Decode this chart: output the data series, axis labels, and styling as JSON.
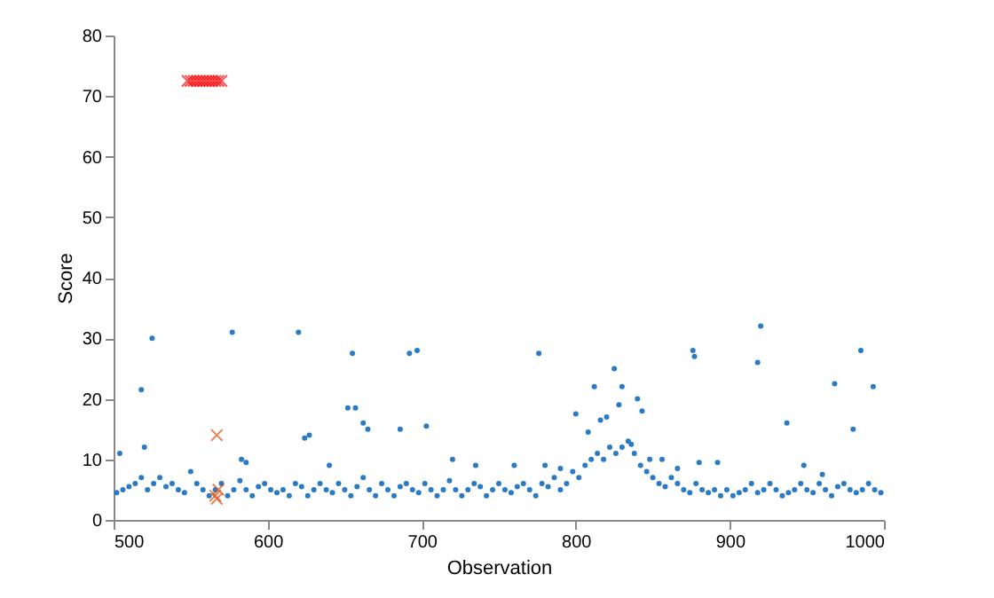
{
  "chart_data": {
    "type": "scatter",
    "xlabel": "Observation",
    "ylabel": "Score",
    "xlim": [
      500,
      1000
    ],
    "ylim": [
      0,
      80
    ],
    "xticks": [
      500,
      600,
      700,
      800,
      900,
      1000
    ],
    "yticks": [
      0,
      10,
      20,
      30,
      40,
      50,
      60,
      70,
      80
    ],
    "grid": false,
    "series": [
      {
        "color": "#2a7bc4",
        "marker": "circle",
        "x": [
          502,
          506,
          510,
          514,
          518,
          522,
          526,
          530,
          534,
          538,
          542,
          546,
          550,
          554,
          558,
          562,
          566,
          570,
          574,
          578,
          582,
          586,
          590,
          594,
          598,
          602,
          606,
          610,
          614,
          618,
          622,
          626,
          630,
          634,
          638,
          642,
          646,
          650,
          654,
          658,
          662,
          666,
          670,
          674,
          678,
          682,
          686,
          690,
          694,
          698,
          702,
          706,
          710,
          714,
          718,
          722,
          726,
          730,
          734,
          738,
          742,
          746,
          750,
          754,
          758,
          762,
          766,
          770,
          774,
          778,
          782,
          786,
          790,
          794,
          798,
          802,
          806,
          810,
          814,
          818,
          822,
          826,
          830,
          834,
          838,
          842,
          846,
          850,
          854,
          858,
          862,
          866,
          870,
          874,
          878,
          882,
          886,
          890,
          894,
          898,
          902,
          906,
          910,
          914,
          918,
          922,
          926,
          930,
          934,
          938,
          942,
          946,
          950,
          954,
          958,
          962,
          966,
          970,
          974,
          978,
          982,
          986,
          990,
          994,
          998,
          525,
          577,
          620,
          655,
          692,
          697,
          776,
          876,
          877,
          920,
          918,
          985,
          968,
          993,
          518,
          825,
          812,
          830,
          820,
          840,
          843,
          937,
          980,
          652,
          657,
          662,
          665,
          686,
          703,
          624,
          627,
          504,
          520,
          583,
          586,
          640,
          720,
          735,
          760,
          780,
          790,
          800,
          808,
          816,
          828,
          836,
          848,
          856,
          866,
          880,
          892,
          948,
          960
        ],
        "values": [
          4.5,
          5,
          5.5,
          6,
          7,
          5,
          6,
          7,
          5.5,
          6,
          5,
          4.5,
          8,
          6,
          5,
          4,
          5,
          6,
          4,
          5,
          6.5,
          5,
          4,
          5.5,
          6,
          5,
          4.5,
          5,
          4,
          6,
          5.5,
          4,
          5,
          6,
          5,
          4.5,
          6,
          5,
          4,
          5.5,
          7,
          5,
          4,
          6,
          5,
          4,
          5.5,
          6,
          5,
          4.5,
          6,
          5,
          4,
          5,
          6.5,
          5,
          4,
          5,
          6,
          5.5,
          4,
          5,
          6,
          5,
          4.5,
          5.5,
          6,
          5,
          4,
          6,
          5.5,
          7,
          5,
          6,
          8,
          7,
          9,
          10,
          11,
          10,
          12,
          11,
          12,
          13,
          11,
          9,
          8,
          7,
          6,
          5.5,
          7,
          6,
          5,
          4.5,
          6,
          5,
          4.5,
          5,
          4,
          5,
          4,
          4.5,
          5,
          6,
          4.5,
          5,
          6,
          5,
          4,
          4.5,
          5,
          6,
          5,
          4.5,
          6,
          5,
          4,
          5.5,
          6,
          5,
          4.5,
          5,
          6,
          5,
          4.5,
          30,
          31,
          31,
          27.5,
          27.5,
          28,
          27.5,
          28,
          27,
          32,
          26,
          28,
          22.5,
          22,
          21.5,
          25,
          22,
          22,
          17,
          20,
          18,
          16,
          15,
          18.5,
          18.5,
          16,
          15,
          15,
          15.5,
          13.5,
          14,
          11,
          12,
          10,
          9.5,
          9,
          10,
          9,
          9,
          9,
          8.5,
          17.5,
          14.5,
          16.5,
          19,
          12.5,
          10,
          10,
          8.5,
          9.5,
          9.5,
          9,
          7.5
        ]
      },
      {
        "color": "#ff0000",
        "marker": "cross",
        "x": [
          548,
          550,
          552,
          554,
          556,
          558,
          560,
          562,
          564,
          566,
          568,
          570
        ],
        "values": [
          72.5,
          72.5,
          72.5,
          72.5,
          72.5,
          72.5,
          72.5,
          72.5,
          72.5,
          72.5,
          72.5,
          72.5
        ]
      },
      {
        "color": "#d95319",
        "marker": "cross",
        "x": [
          567,
          566,
          568,
          567
        ],
        "values": [
          14,
          4,
          5,
          3.5
        ]
      }
    ]
  }
}
